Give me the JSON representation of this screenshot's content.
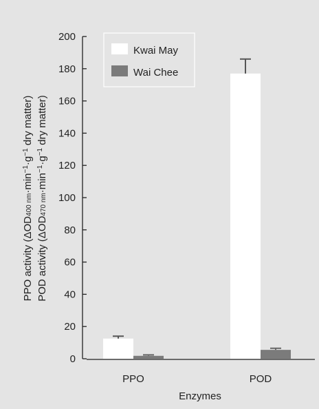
{
  "colors": {
    "background": "#e4e4e4",
    "axis": "#222222",
    "series_kwai_may": "#ffffff",
    "series_wai_chee": "#7b7b7b"
  },
  "chart_data": {
    "type": "bar",
    "title": "",
    "xlabel": "Enzymes",
    "ylabel_lines": [
      "PPO activity (ΔOD400 nm·min−1·g−1 dry matter)",
      "POD activity (ΔOD470 nm·min−1·g−1 dry matter)"
    ],
    "categories": [
      "PPO",
      "POD"
    ],
    "ylim": [
      0,
      200
    ],
    "yticks": [
      0,
      20,
      40,
      60,
      80,
      100,
      120,
      140,
      160,
      180,
      200
    ],
    "grid": false,
    "legend_position": "top-left",
    "series": [
      {
        "name": "Kwai May",
        "values": [
          12.5,
          177
        ],
        "errors": [
          1.5,
          9
        ]
      },
      {
        "name": "Wai Chee",
        "values": [
          1.8,
          5.5
        ],
        "errors": [
          0.6,
          1.0
        ]
      }
    ]
  }
}
